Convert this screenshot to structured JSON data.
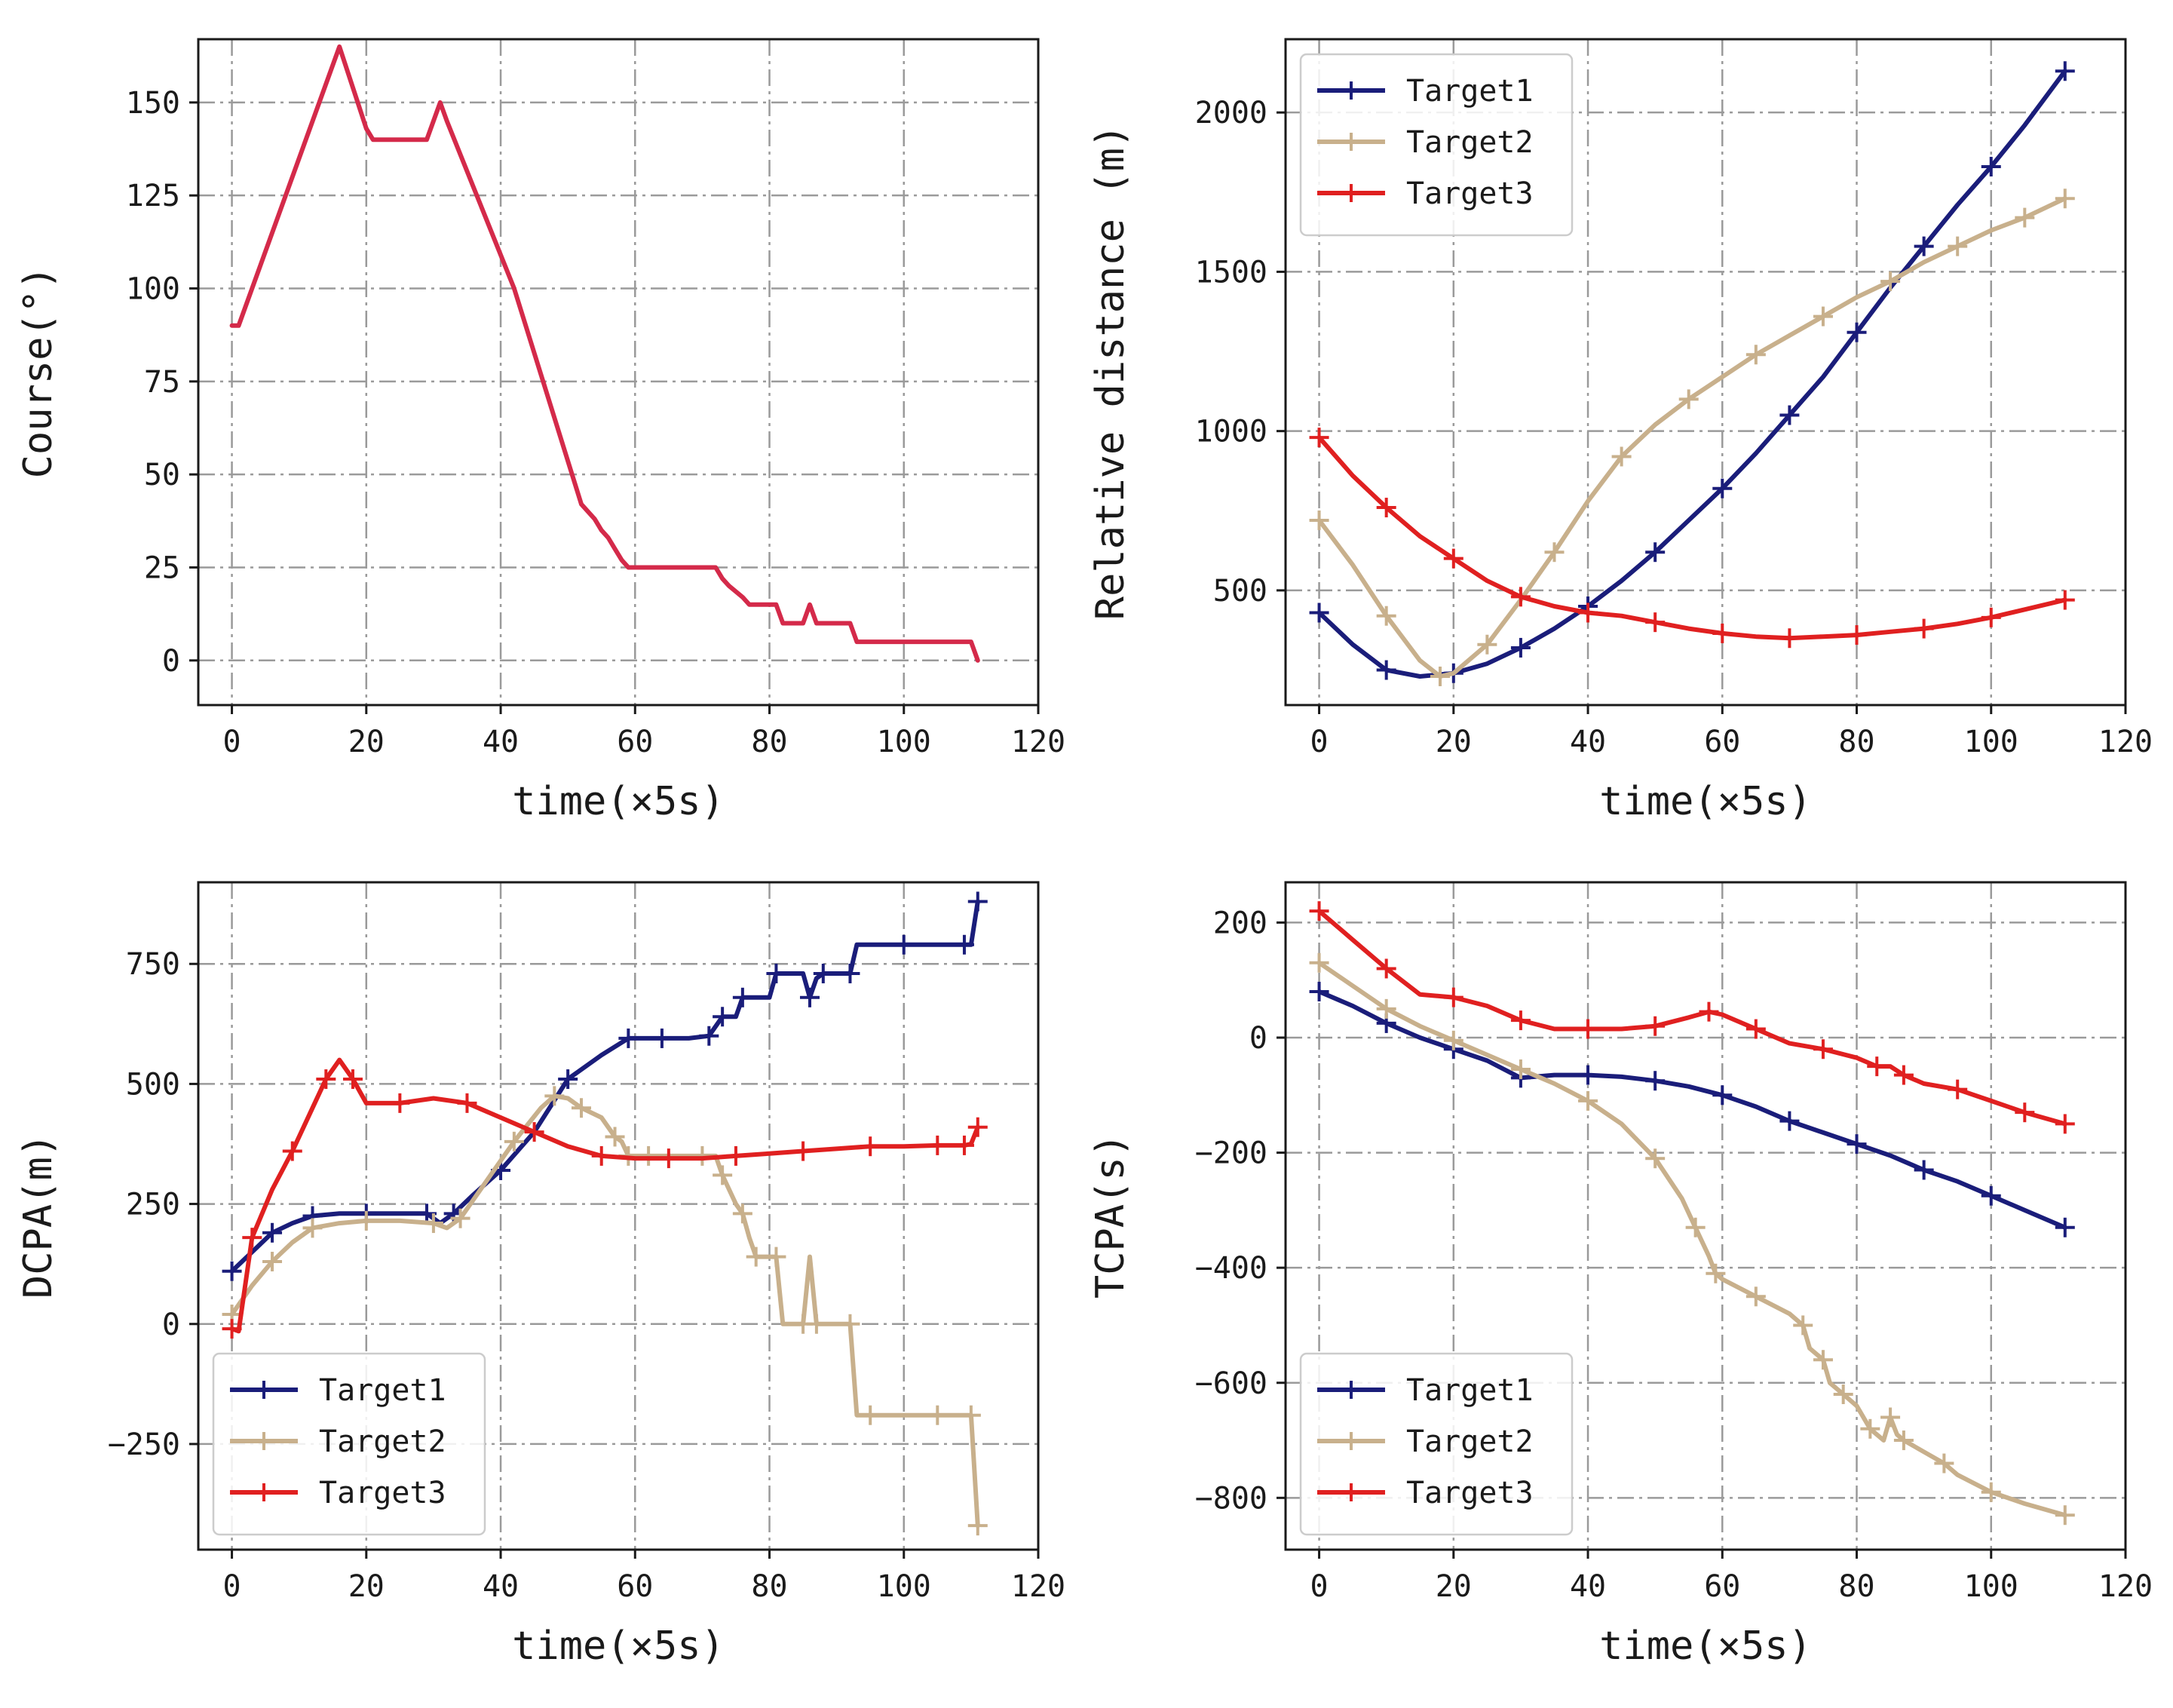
{
  "chart_data": [
    {
      "id": "course",
      "type": "line",
      "title": "",
      "xlabel": "time(×5s)",
      "ylabel": "Course(°)",
      "xlim": [
        -5,
        120
      ],
      "ylim": [
        -12,
        167
      ],
      "xticks": [
        0,
        20,
        40,
        60,
        80,
        100,
        120
      ],
      "yticks": [
        0,
        25,
        50,
        75,
        100,
        125,
        150
      ],
      "grid": true,
      "legend": "none",
      "series": [
        {
          "color": "#d42a4a",
          "marker": "none",
          "x": [
            0,
            1,
            16,
            20,
            21,
            29,
            31,
            32,
            42,
            52,
            54,
            55,
            56,
            57,
            58,
            59,
            70,
            72,
            73,
            74,
            76,
            77,
            81,
            82,
            85,
            86,
            87,
            92,
            93,
            110,
            111
          ],
          "y": [
            90,
            90,
            165,
            143,
            140,
            140,
            150,
            145,
            100,
            42,
            38,
            35,
            33,
            30,
            27,
            25,
            25,
            25,
            22,
            20,
            17,
            15,
            15,
            10,
            10,
            15,
            10,
            10,
            5,
            5,
            0
          ]
        }
      ]
    },
    {
      "id": "relative-distance",
      "type": "line",
      "title": "",
      "xlabel": "time(×5s)",
      "ylabel": "Relative distance (m)",
      "xlim": [
        -5,
        120
      ],
      "ylim": [
        140,
        2230
      ],
      "xticks": [
        0,
        20,
        40,
        60,
        80,
        100,
        120
      ],
      "yticks": [
        500,
        1000,
        1500,
        2000
      ],
      "grid": true,
      "legend": "top-left",
      "series": [
        {
          "name": "Target1",
          "color": "#1a1d7a",
          "marker": "plus",
          "x": [
            0,
            5,
            10,
            15,
            20,
            25,
            30,
            35,
            40,
            45,
            50,
            55,
            60,
            65,
            70,
            75,
            80,
            85,
            90,
            95,
            100,
            105,
            111
          ],
          "y": [
            430,
            330,
            250,
            230,
            240,
            270,
            320,
            380,
            450,
            530,
            620,
            720,
            820,
            930,
            1050,
            1170,
            1310,
            1450,
            1580,
            1710,
            1830,
            1960,
            2130
          ]
        },
        {
          "name": "Target2",
          "color": "#c8b08c",
          "marker": "plus",
          "x": [
            0,
            5,
            10,
            15,
            18,
            20,
            25,
            30,
            35,
            40,
            45,
            50,
            55,
            60,
            65,
            70,
            75,
            80,
            85,
            90,
            95,
            100,
            105,
            111
          ],
          "y": [
            720,
            580,
            420,
            280,
            230,
            240,
            330,
            470,
            620,
            780,
            920,
            1020,
            1100,
            1170,
            1240,
            1300,
            1360,
            1420,
            1470,
            1530,
            1580,
            1630,
            1670,
            1730
          ]
        },
        {
          "name": "Target3",
          "color": "#e02020",
          "marker": "plus",
          "x": [
            0,
            5,
            10,
            15,
            20,
            25,
            30,
            35,
            40,
            45,
            50,
            55,
            60,
            65,
            70,
            75,
            80,
            85,
            90,
            95,
            100,
            105,
            111
          ],
          "y": [
            980,
            860,
            760,
            670,
            600,
            530,
            480,
            450,
            430,
            420,
            400,
            380,
            365,
            355,
            350,
            355,
            360,
            370,
            380,
            395,
            415,
            440,
            470
          ]
        }
      ]
    },
    {
      "id": "dcpa",
      "type": "line",
      "title": "",
      "xlabel": "time(×5s)",
      "ylabel": "DCPA(m)",
      "xlim": [
        -5,
        120
      ],
      "ylim": [
        -470,
        920
      ],
      "xticks": [
        0,
        20,
        40,
        60,
        80,
        100,
        120
      ],
      "yticks": [
        -250,
        0,
        250,
        500,
        750
      ],
      "grid": true,
      "legend": "bottom-left",
      "series": [
        {
          "name": "Target1",
          "color": "#1a1d7a",
          "marker": "plus",
          "x": [
            0,
            3,
            6,
            9,
            12,
            16,
            20,
            25,
            29,
            31,
            33,
            36,
            40,
            45,
            50,
            55,
            59,
            60,
            64,
            68,
            71,
            72,
            73,
            75,
            76,
            80,
            81,
            85,
            86,
            87,
            88,
            90,
            92,
            93,
            100,
            105,
            109,
            110,
            111
          ],
          "y": [
            110,
            150,
            190,
            210,
            225,
            230,
            230,
            230,
            230,
            210,
            230,
            270,
            320,
            400,
            510,
            560,
            595,
            595,
            595,
            595,
            600,
            620,
            640,
            640,
            680,
            680,
            730,
            730,
            680,
            720,
            730,
            730,
            730,
            790,
            790,
            790,
            790,
            790,
            880
          ]
        },
        {
          "name": "Target2",
          "color": "#c8b08c",
          "marker": "plus",
          "x": [
            0,
            3,
            6,
            9,
            12,
            16,
            20,
            25,
            30,
            32,
            34,
            38,
            42,
            46,
            48,
            50,
            52,
            55,
            57,
            58,
            59,
            60,
            62,
            65,
            70,
            72,
            73,
            75,
            76,
            77,
            78,
            80,
            81,
            82,
            85,
            86,
            87,
            91,
            92,
            93,
            95,
            100,
            105,
            109,
            110,
            111
          ],
          "y": [
            20,
            80,
            130,
            170,
            200,
            210,
            215,
            215,
            210,
            200,
            220,
            300,
            380,
            450,
            475,
            470,
            450,
            430,
            390,
            380,
            350,
            350,
            350,
            350,
            350,
            350,
            310,
            250,
            230,
            180,
            140,
            140,
            140,
            0,
            0,
            140,
            0,
            0,
            0,
            -190,
            -190,
            -190,
            -190,
            -190,
            -190,
            -420
          ]
        },
        {
          "name": "Target3",
          "color": "#e02020",
          "marker": "plus",
          "x": [
            0,
            1,
            3,
            6,
            9,
            12,
            14,
            16,
            18,
            20,
            25,
            30,
            35,
            40,
            45,
            50,
            55,
            60,
            65,
            70,
            75,
            80,
            85,
            90,
            95,
            100,
            105,
            108,
            109,
            110,
            111
          ],
          "y": [
            -10,
            -15,
            180,
            280,
            360,
            450,
            510,
            550,
            510,
            460,
            460,
            470,
            460,
            430,
            400,
            370,
            350,
            345,
            345,
            345,
            350,
            355,
            360,
            365,
            370,
            370,
            372,
            372,
            372,
            375,
            410
          ]
        }
      ]
    },
    {
      "id": "tcpa",
      "type": "line",
      "title": "",
      "xlabel": "time(×5s)",
      "ylabel": "TCPA(s)",
      "xlim": [
        -5,
        120
      ],
      "ylim": [
        -890,
        270
      ],
      "xticks": [
        0,
        20,
        40,
        60,
        80,
        100,
        120
      ],
      "yticks": [
        -800,
        -600,
        -400,
        -200,
        0,
        200
      ],
      "grid": true,
      "legend": "bottom-left",
      "series": [
        {
          "name": "Target1",
          "color": "#1a1d7a",
          "marker": "plus",
          "x": [
            0,
            5,
            10,
            15,
            20,
            25,
            30,
            35,
            40,
            45,
            50,
            55,
            60,
            65,
            70,
            75,
            80,
            85,
            90,
            95,
            100,
            105,
            111
          ],
          "y": [
            80,
            55,
            25,
            0,
            -20,
            -40,
            -70,
            -65,
            -65,
            -68,
            -75,
            -85,
            -100,
            -120,
            -145,
            -165,
            -185,
            -205,
            -230,
            -250,
            -275,
            -300,
            -330
          ]
        },
        {
          "name": "Target2",
          "color": "#c8b08c",
          "marker": "plus",
          "x": [
            0,
            5,
            10,
            15,
            20,
            25,
            30,
            35,
            40,
            45,
            50,
            54,
            56,
            58,
            59,
            60,
            65,
            70,
            72,
            73,
            75,
            76,
            78,
            80,
            82,
            84,
            85,
            86,
            87,
            90,
            93,
            95,
            100,
            105,
            111
          ],
          "y": [
            130,
            90,
            50,
            20,
            -5,
            -30,
            -55,
            -80,
            -110,
            -150,
            -210,
            -280,
            -330,
            -380,
            -410,
            -420,
            -450,
            -480,
            -500,
            -540,
            -560,
            -600,
            -620,
            -640,
            -680,
            -700,
            -660,
            -690,
            -700,
            -720,
            -740,
            -760,
            -790,
            -810,
            -830
          ]
        },
        {
          "name": "Target3",
          "color": "#e02020",
          "marker": "plus",
          "x": [
            0,
            5,
            10,
            15,
            20,
            25,
            30,
            35,
            40,
            45,
            50,
            55,
            58,
            60,
            65,
            70,
            75,
            80,
            83,
            85,
            87,
            90,
            95,
            100,
            105,
            111
          ],
          "y": [
            220,
            170,
            120,
            75,
            70,
            55,
            30,
            15,
            15,
            15,
            20,
            35,
            45,
            40,
            15,
            -10,
            -20,
            -35,
            -50,
            -50,
            -65,
            -80,
            -90,
            -110,
            -130,
            -150
          ]
        }
      ]
    }
  ]
}
